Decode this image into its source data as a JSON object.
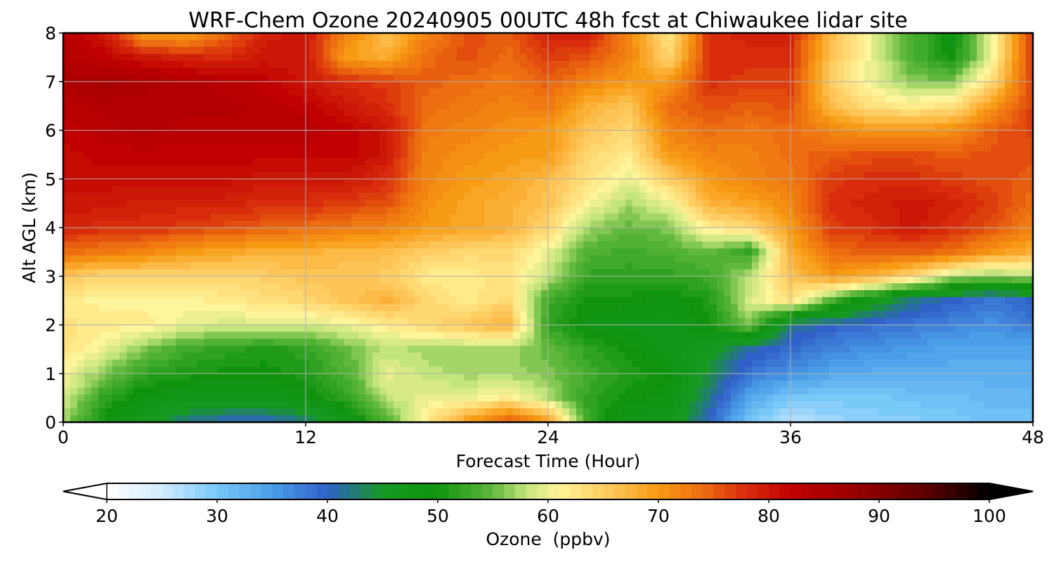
{
  "chart_data": {
    "type": "heatmap",
    "title": "WRF-Chem Ozone  20240905 00UTC 48h fcst at Chiwaukee lidar site",
    "xlabel": "Forecast Time (Hour)",
    "ylabel": "Alt AGL (km)",
    "xlim": [
      0,
      48
    ],
    "ylim": [
      0,
      8
    ],
    "x_ticks": [
      0,
      12,
      24,
      36,
      48
    ],
    "y_ticks": [
      0,
      1,
      2,
      3,
      4,
      5,
      6,
      7,
      8
    ],
    "grid": true,
    "x": [
      0,
      2,
      4,
      6,
      8,
      10,
      12,
      14,
      16,
      18,
      20,
      22,
      24,
      26,
      28,
      30,
      32,
      34,
      36,
      38,
      40,
      42,
      44,
      46,
      48
    ],
    "y": [
      0,
      0.5,
      1,
      1.5,
      2,
      2.5,
      3,
      3.5,
      4,
      4.5,
      5,
      5.5,
      6,
      6.5,
      7,
      7.5,
      8
    ],
    "z": [
      [
        57,
        50,
        46,
        42,
        40,
        40,
        42,
        47,
        54,
        62,
        70,
        76,
        70,
        52,
        48,
        47,
        40,
        30,
        26,
        28,
        29,
        29,
        30,
        31,
        31
      ],
      [
        59,
        52,
        49,
        48,
        48,
        48,
        49,
        52,
        58,
        60,
        60,
        62,
        58,
        52,
        50,
        49,
        42,
        34,
        30,
        30,
        30,
        31,
        31,
        32,
        32
      ],
      [
        61,
        56,
        52,
        51,
        50,
        50,
        51,
        54,
        60,
        58,
        57,
        57,
        56,
        53,
        51,
        50,
        44,
        38,
        36,
        34,
        33,
        33,
        33,
        33,
        33
      ],
      [
        63,
        60,
        56,
        53,
        52,
        51,
        52,
        55,
        58,
        57,
        57,
        57,
        55,
        52,
        50,
        48,
        46,
        41,
        39,
        37,
        36,
        35,
        34,
        34,
        34
      ],
      [
        63,
        62,
        62,
        60,
        59,
        59,
        59,
        60,
        62,
        64,
        66,
        68,
        52,
        49,
        48,
        48,
        50,
        56,
        42,
        40,
        39,
        38,
        37,
        36,
        38
      ],
      [
        62,
        61,
        61,
        61,
        62,
        63,
        64,
        66,
        68,
        64,
        62,
        64,
        53,
        50,
        50,
        49,
        51,
        59,
        63,
        54,
        47,
        42,
        40,
        38,
        40
      ],
      [
        66,
        64,
        64,
        64,
        64,
        65,
        66,
        66,
        65,
        62,
        62,
        63,
        58,
        52,
        52,
        52,
        53,
        58,
        66,
        70,
        68,
        64,
        58,
        56,
        58
      ],
      [
        74,
        73,
        72,
        70,
        69,
        68,
        68,
        67,
        67,
        65,
        64,
        64,
        60,
        54,
        53,
        54,
        55,
        52,
        68,
        74,
        75,
        75,
        74,
        70,
        68
      ],
      [
        79,
        78,
        78,
        77,
        76,
        75,
        74,
        73,
        72,
        70,
        69,
        68,
        64,
        57,
        55,
        56,
        62,
        64,
        70,
        77,
        78,
        80,
        78,
        76,
        72
      ],
      [
        80,
        80,
        79,
        79,
        79,
        78,
        78,
        77,
        76,
        71,
        69,
        68,
        66,
        61,
        57,
        60,
        68,
        69,
        72,
        78,
        79,
        80,
        79,
        77,
        74
      ],
      [
        81,
        81,
        81,
        81,
        81,
        80,
        80,
        80,
        78,
        72,
        70,
        69,
        67,
        63,
        60,
        65,
        70,
        72,
        73,
        77,
        78,
        78,
        77,
        76,
        75
      ],
      [
        81,
        82,
        82,
        82,
        82,
        82,
        82,
        82,
        80,
        72,
        71,
        70,
        70,
        64,
        62,
        70,
        72,
        72,
        74,
        75,
        76,
        76,
        75,
        76,
        76
      ],
      [
        82,
        83,
        84,
        83,
        83,
        83,
        83,
        82,
        80,
        73,
        72,
        71,
        70,
        66,
        64,
        72,
        74,
        73,
        74,
        72,
        70,
        70,
        71,
        75,
        77
      ],
      [
        83,
        84,
        84,
        84,
        84,
        83,
        82,
        80,
        78,
        74,
        73,
        72,
        73,
        68,
        66,
        74,
        76,
        75,
        76,
        67,
        63,
        62,
        63,
        70,
        77
      ],
      [
        85,
        86,
        85,
        84,
        83,
        82,
        80,
        78,
        77,
        75,
        74,
        73,
        75,
        72,
        70,
        70,
        78,
        77,
        77,
        65,
        60,
        56,
        56,
        64,
        77
      ],
      [
        84,
        82,
        80,
        79,
        78,
        80,
        80,
        70,
        68,
        74,
        76,
        74,
        77,
        76,
        72,
        64,
        78,
        78,
        78,
        66,
        60,
        54,
        50,
        60,
        78
      ],
      [
        83,
        80,
        70,
        69,
        74,
        79,
        80,
        72,
        66,
        72,
        76,
        75,
        79,
        79,
        72,
        62,
        78,
        79,
        79,
        67,
        60,
        54,
        49,
        60,
        78
      ]
    ],
    "colorbar": {
      "label": "Ozone  (ppbv)",
      "min": 20,
      "max": 100,
      "ticks": [
        20,
        30,
        40,
        50,
        60,
        70,
        80,
        90,
        100
      ],
      "extend": "both",
      "colors": [
        "#ffffff",
        "#d2ecff",
        "#78c8f8",
        "#4a9ee8",
        "#3060c8",
        "#169a22",
        "#109410",
        "#60b83c",
        "#c4e47c",
        "#fff59a",
        "#fec456",
        "#f79a14",
        "#ed6e10",
        "#d82c0c",
        "#c00000",
        "#980000",
        "#600000",
        "#000000"
      ],
      "color_stops": [
        20,
        25,
        30,
        35,
        40,
        45,
        50,
        55,
        58,
        61,
        66,
        70,
        74,
        78,
        82,
        88,
        94,
        100
      ]
    }
  }
}
